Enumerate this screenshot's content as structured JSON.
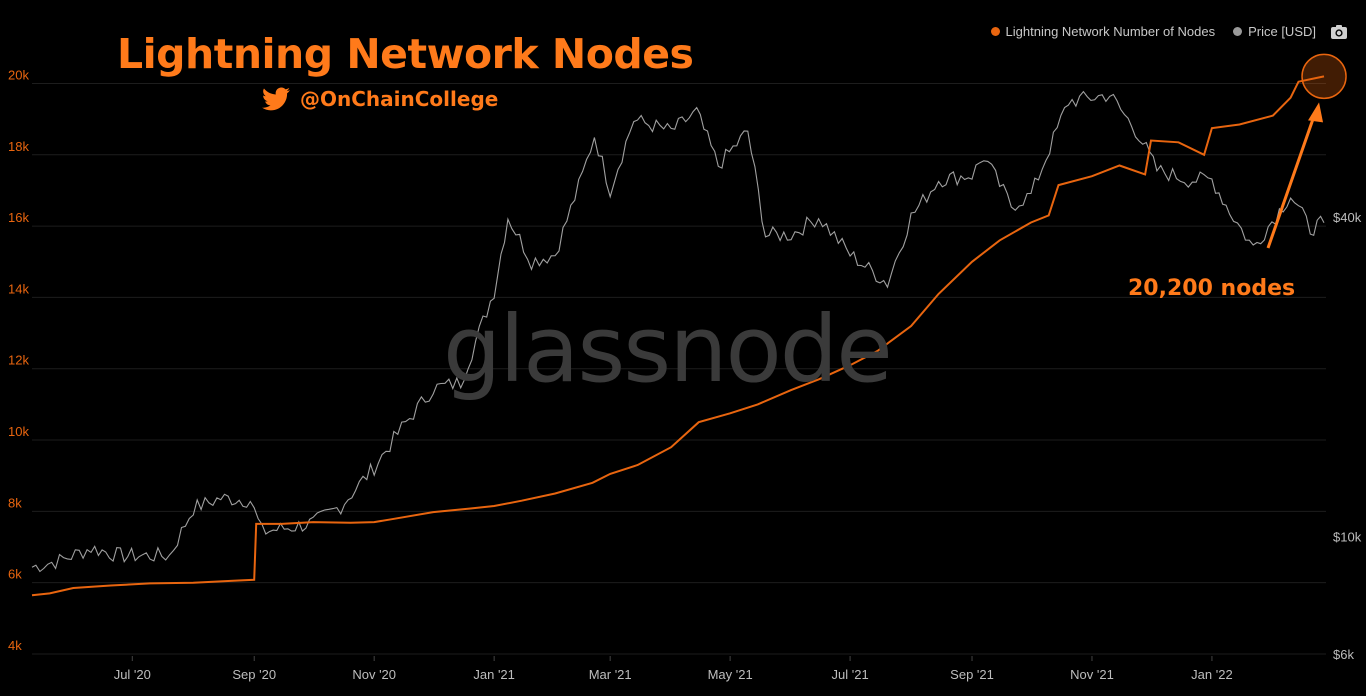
{
  "header": {
    "title": "Lightning Network Nodes",
    "handle": "@OnChainCollege",
    "watermark": "glassnode",
    "annotation": "20,200 nodes"
  },
  "legend": {
    "items": [
      {
        "label": "Lightning Network Number of Nodes",
        "color": "#e8650f"
      },
      {
        "label": "Price [USD]",
        "color": "#9a9a9a"
      }
    ]
  },
  "icons": {
    "twitter": "twitter-icon",
    "camera": "camera-icon"
  },
  "colors": {
    "accent": "#ff7a1a",
    "nodes_line": "#e8650f",
    "price_line": "#a0a0a0",
    "background": "#000000"
  },
  "chart_data": {
    "type": "line",
    "x_ticks": [
      "Jul '20",
      "Sep '20",
      "Nov '20",
      "Jan '21",
      "Mar '21",
      "May '21",
      "Jul '21",
      "Sep '21",
      "Nov '21",
      "Jan '22"
    ],
    "x_range": [
      "2020-05-11",
      "2022-02-28"
    ],
    "y_left": {
      "ticks": [
        "4k",
        "6k",
        "8k",
        "10k",
        "12k",
        "14k",
        "16k",
        "18k",
        "20k"
      ],
      "range": [
        4000,
        21500
      ]
    },
    "y_right": {
      "ticks": [
        "$6k",
        "$10k",
        "$40k"
      ],
      "scale": "log",
      "range": [
        6000,
        90000
      ]
    },
    "grid": true,
    "legend_position": "top-right",
    "series": [
      {
        "name": "Lightning Network Number of Nodes",
        "axis": "left",
        "points": [
          [
            "2020-05-11",
            5650
          ],
          [
            "2020-05-20",
            5700
          ],
          [
            "2020-06-01",
            5850
          ],
          [
            "2020-06-20",
            5920
          ],
          [
            "2020-07-10",
            5980
          ],
          [
            "2020-08-01",
            6000
          ],
          [
            "2020-08-20",
            6050
          ],
          [
            "2020-09-01",
            6080
          ],
          [
            "2020-09-02",
            7650
          ],
          [
            "2020-09-15",
            7650
          ],
          [
            "2020-10-01",
            7700
          ],
          [
            "2020-10-20",
            7680
          ],
          [
            "2020-11-01",
            7700
          ],
          [
            "2020-11-10",
            7780
          ],
          [
            "2020-12-01",
            7980
          ],
          [
            "2020-12-20",
            8080
          ],
          [
            "2021-01-01",
            8150
          ],
          [
            "2021-01-15",
            8300
          ],
          [
            "2021-02-01",
            8500
          ],
          [
            "2021-02-20",
            8800
          ],
          [
            "2021-03-01",
            9050
          ],
          [
            "2021-03-15",
            9300
          ],
          [
            "2021-04-01",
            9800
          ],
          [
            "2021-04-15",
            10500
          ],
          [
            "2021-05-01",
            10750
          ],
          [
            "2021-05-15",
            11000
          ],
          [
            "2021-06-01",
            11400
          ],
          [
            "2021-06-15",
            11700
          ],
          [
            "2021-07-01",
            12100
          ],
          [
            "2021-07-15",
            12500
          ],
          [
            "2021-08-01",
            13200
          ],
          [
            "2021-08-15",
            14100
          ],
          [
            "2021-09-01",
            15000
          ],
          [
            "2021-09-15",
            15600
          ],
          [
            "2021-10-01",
            16100
          ],
          [
            "2021-10-10",
            16300
          ],
          [
            "2021-10-15",
            17150
          ],
          [
            "2021-11-01",
            17400
          ],
          [
            "2021-11-15",
            17700
          ],
          [
            "2021-11-28",
            17450
          ],
          [
            "2021-12-01",
            18400
          ],
          [
            "2021-12-15",
            18350
          ],
          [
            "2021-12-28",
            18000
          ],
          [
            "2022-01-01",
            18750
          ],
          [
            "2022-01-15",
            18850
          ],
          [
            "2022-02-01",
            19100
          ],
          [
            "2022-02-10",
            19600
          ],
          [
            "2022-02-14",
            20050
          ],
          [
            "2022-02-27",
            20200
          ]
        ]
      },
      {
        "name": "Price [USD]",
        "axis": "right",
        "points": [
          [
            "2020-05-11",
            8750
          ],
          [
            "2020-05-25",
            9000
          ],
          [
            "2020-06-10",
            9500
          ],
          [
            "2020-06-25",
            9200
          ],
          [
            "2020-07-10",
            9200
          ],
          [
            "2020-07-20",
            9200
          ],
          [
            "2020-08-01",
            11300
          ],
          [
            "2020-08-15",
            11800
          ],
          [
            "2020-08-30",
            11700
          ],
          [
            "2020-09-05",
            10200
          ],
          [
            "2020-09-20",
            10400
          ],
          [
            "2020-10-01",
            10600
          ],
          [
            "2020-10-15",
            11400
          ],
          [
            "2020-11-01",
            13500
          ],
          [
            "2020-11-15",
            16000
          ],
          [
            "2020-12-01",
            19000
          ],
          [
            "2020-12-15",
            19500
          ],
          [
            "2021-01-01",
            29000
          ],
          [
            "2021-01-08",
            40000
          ],
          [
            "2021-01-20",
            33000
          ],
          [
            "2021-02-01",
            34000
          ],
          [
            "2021-02-15",
            48000
          ],
          [
            "2021-02-21",
            57000
          ],
          [
            "2021-03-01",
            45000
          ],
          [
            "2021-03-13",
            61000
          ],
          [
            "2021-04-01",
            58000
          ],
          [
            "2021-04-14",
            63000
          ],
          [
            "2021-04-25",
            50000
          ],
          [
            "2021-05-10",
            58000
          ],
          [
            "2021-05-19",
            37000
          ],
          [
            "2021-06-01",
            37000
          ],
          [
            "2021-06-15",
            40000
          ],
          [
            "2021-07-01",
            34000
          ],
          [
            "2021-07-20",
            30000
          ],
          [
            "2021-08-01",
            40000
          ],
          [
            "2021-08-15",
            47000
          ],
          [
            "2021-09-01",
            48000
          ],
          [
            "2021-09-07",
            52000
          ],
          [
            "2021-09-21",
            42000
          ],
          [
            "2021-10-01",
            44000
          ],
          [
            "2021-10-20",
            66000
          ],
          [
            "2021-11-10",
            68000
          ],
          [
            "2021-11-25",
            57000
          ],
          [
            "2021-12-04",
            49000
          ],
          [
            "2021-12-20",
            47000
          ],
          [
            "2022-01-01",
            47000
          ],
          [
            "2022-01-10",
            41000
          ],
          [
            "2022-01-22",
            35000
          ],
          [
            "2022-02-10",
            44000
          ],
          [
            "2022-02-20",
            38000
          ],
          [
            "2022-02-27",
            39000
          ]
        ]
      }
    ]
  }
}
